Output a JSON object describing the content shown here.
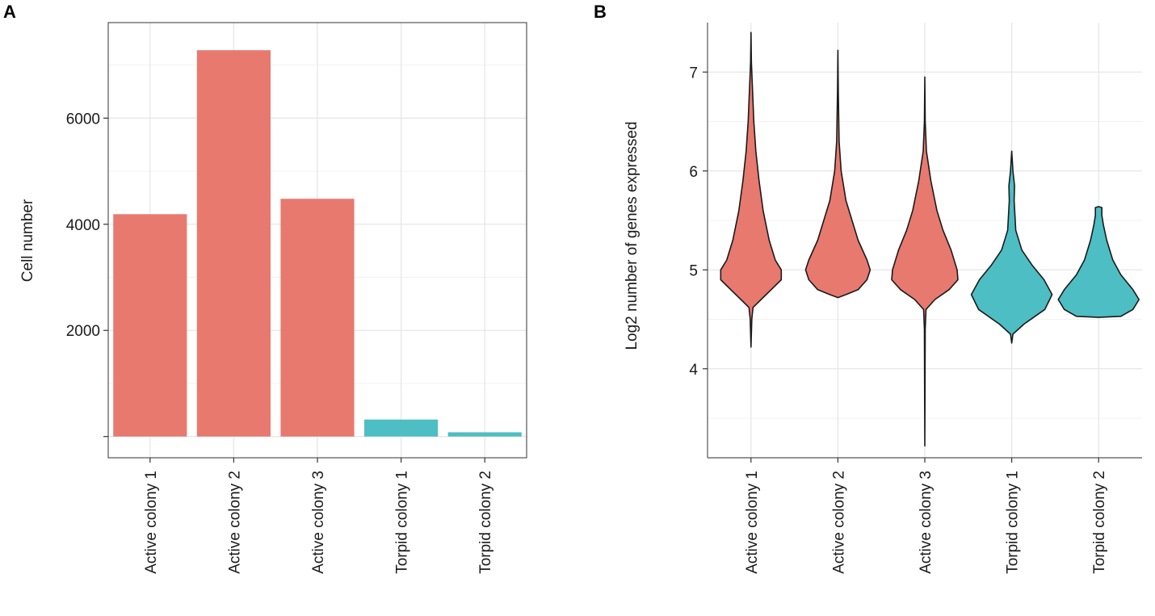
{
  "chart_data": [
    {
      "panel": "A",
      "type": "bar",
      "title": "",
      "xlabel": "",
      "ylabel": "Cell number",
      "categories": [
        "Active  colony 1",
        "Active  colony 2",
        "Active  colony 3",
        "Torpid colony 1",
        "Torpid colony 2"
      ],
      "values": [
        4190,
        7280,
        4480,
        320,
        80
      ],
      "groups": [
        "Active",
        "Active",
        "Active",
        "Torpid",
        "Torpid"
      ],
      "ylim": [
        -400,
        7800
      ],
      "yticks": [
        0,
        2000,
        4000,
        6000
      ],
      "ytick_labels": [
        "",
        "2000",
        "4000",
        "6000"
      ],
      "grid": true,
      "legend": "none"
    },
    {
      "panel": "B",
      "type": "violin",
      "title": "",
      "xlabel": "",
      "ylabel": "Log2 number of genes expressed",
      "categories": [
        "Active  colony 1",
        "Active  colony 2",
        "Active  colony 3",
        "Torpid colony 1",
        "Torpid colony 2"
      ],
      "groups": [
        "Active",
        "Active",
        "Active",
        "Torpid",
        "Torpid"
      ],
      "ylim": [
        3.1,
        7.5
      ],
      "yticks": [
        4,
        5,
        6,
        7
      ],
      "ytick_labels": [
        "4",
        "5",
        "6",
        "7"
      ],
      "grid": true,
      "legend": "none",
      "violins": [
        {
          "min": 4.22,
          "max": 7.4,
          "profile": [
            [
              4.22,
              0
            ],
            [
              4.5,
              0.02
            ],
            [
              4.62,
              0.05
            ],
            [
              4.7,
              0.25
            ],
            [
              4.8,
              0.5
            ],
            [
              4.9,
              0.75
            ],
            [
              5.0,
              0.75
            ],
            [
              5.1,
              0.6
            ],
            [
              5.3,
              0.45
            ],
            [
              5.6,
              0.3
            ],
            [
              5.9,
              0.2
            ],
            [
              6.2,
              0.12
            ],
            [
              6.5,
              0.07
            ],
            [
              6.9,
              0.03
            ],
            [
              7.1,
              0.01
            ],
            [
              7.4,
              0
            ]
          ]
        },
        {
          "min": 4.72,
          "max": 7.22,
          "profile": [
            [
              4.72,
              0
            ],
            [
              4.75,
              0.2
            ],
            [
              4.8,
              0.5
            ],
            [
              4.9,
              0.72
            ],
            [
              5.0,
              0.8
            ],
            [
              5.1,
              0.72
            ],
            [
              5.3,
              0.5
            ],
            [
              5.5,
              0.35
            ],
            [
              5.7,
              0.2
            ],
            [
              6.0,
              0.08
            ],
            [
              6.3,
              0.03
            ],
            [
              6.8,
              0.01
            ],
            [
              7.22,
              0
            ]
          ]
        },
        {
          "min": 3.22,
          "max": 6.95,
          "profile": [
            [
              3.22,
              0
            ],
            [
              4.4,
              0.01
            ],
            [
              4.6,
              0.03
            ],
            [
              4.7,
              0.25
            ],
            [
              4.8,
              0.6
            ],
            [
              4.9,
              0.82
            ],
            [
              5.0,
              0.8
            ],
            [
              5.2,
              0.65
            ],
            [
              5.4,
              0.45
            ],
            [
              5.6,
              0.3
            ],
            [
              5.9,
              0.15
            ],
            [
              6.2,
              0.04
            ],
            [
              6.5,
              0.01
            ],
            [
              6.95,
              0
            ]
          ]
        },
        {
          "min": 4.26,
          "max": 6.2,
          "profile": [
            [
              4.26,
              0
            ],
            [
              4.35,
              0.03
            ],
            [
              4.45,
              0.3
            ],
            [
              4.6,
              0.82
            ],
            [
              4.75,
              1.0
            ],
            [
              4.9,
              0.8
            ],
            [
              5.05,
              0.5
            ],
            [
              5.2,
              0.25
            ],
            [
              5.4,
              0.1
            ],
            [
              5.7,
              0.06
            ],
            [
              5.85,
              0.07
            ],
            [
              6.0,
              0.03
            ],
            [
              6.2,
              0
            ]
          ]
        },
        {
          "min": 4.52,
          "max": 5.64,
          "profile": [
            [
              4.52,
              0
            ],
            [
              4.53,
              0.55
            ],
            [
              4.6,
              0.85
            ],
            [
              4.7,
              1.0
            ],
            [
              4.8,
              0.85
            ],
            [
              4.95,
              0.55
            ],
            [
              5.1,
              0.35
            ],
            [
              5.3,
              0.2
            ],
            [
              5.45,
              0.12
            ],
            [
              5.55,
              0.08
            ],
            [
              5.63,
              0.08
            ],
            [
              5.64,
              0
            ]
          ]
        }
      ]
    }
  ],
  "colors": {
    "Active": "#e8796f",
    "Torpid": "#4dbec3",
    "outline": "#1a1a1a"
  }
}
